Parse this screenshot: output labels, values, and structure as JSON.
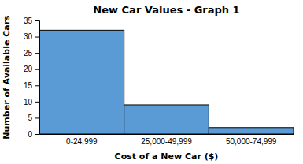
{
  "chart_data": {
    "type": "bar",
    "title": "New Car Values - Graph 1",
    "xlabel": "Cost of a New Car ($)",
    "ylabel": "Number of Available Cars",
    "categories": [
      "0-24,999",
      "25,000-49,999",
      "50,000-74,999"
    ],
    "values": [
      32,
      9,
      2
    ],
    "color": "#5B9BD5",
    "ylim": [
      0,
      35
    ],
    "yticks": [
      0,
      5,
      10,
      15,
      20,
      25,
      30,
      35
    ],
    "grid": false
  }
}
